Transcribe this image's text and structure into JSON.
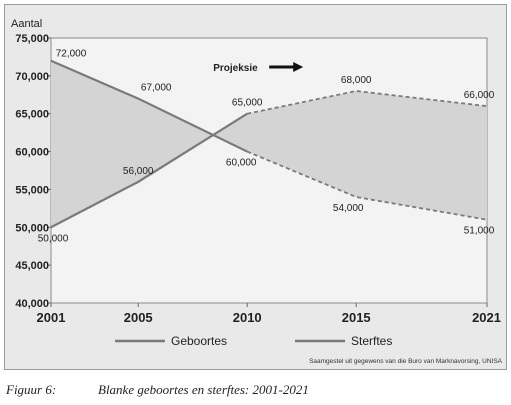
{
  "chart_data": {
    "type": "line",
    "ylabel": "Aantal",
    "ylim": [
      40000,
      75000
    ],
    "y_ticks": [
      "40,000",
      "45,000",
      "50,000",
      "55,000",
      "60,000",
      "65,000",
      "70,000",
      "75,000"
    ],
    "y_tick_values": [
      40000,
      45000,
      50000,
      55000,
      60000,
      65000,
      70000,
      75000
    ],
    "x_ticks": [
      "2001",
      "2005",
      "2010",
      "2015",
      "2021"
    ],
    "x_tick_values": [
      2001,
      2005,
      2010,
      2015,
      2021
    ],
    "xlim": [
      2001,
      2021
    ],
    "grid": false,
    "legend": "bottom",
    "projection_start": 2010,
    "projection_label": "Projeksie",
    "series": [
      {
        "name": "Geboortes",
        "x": [
          2001,
          2005,
          2010,
          2015,
          2021
        ],
        "values": [
          50000,
          56000,
          65000,
          68000,
          66000
        ],
        "labels": [
          "50,000",
          "56,000",
          "65,000",
          "68,000",
          "66,000"
        ]
      },
      {
        "name": "Sterftes",
        "x": [
          2001,
          2005,
          2010,
          2015,
          2021
        ],
        "values": [
          72000,
          67000,
          60000,
          54000,
          51000
        ],
        "labels": [
          "72,000",
          "67,000",
          "60,000",
          "54,000",
          "51,000"
        ]
      }
    ],
    "source_note": "Saamgestel uit gegewens van die Buro van Marknavorsing, UNISA",
    "colors": {
      "line": "#7a7a7a",
      "fill": "#d4d4d4",
      "plot_bg": "#f3f3f3",
      "frame_bg": "#e9e9e9"
    }
  },
  "caption": {
    "number": "Figuur 6:",
    "text": "Blanke geboortes en sterftes: 2001-2021"
  }
}
